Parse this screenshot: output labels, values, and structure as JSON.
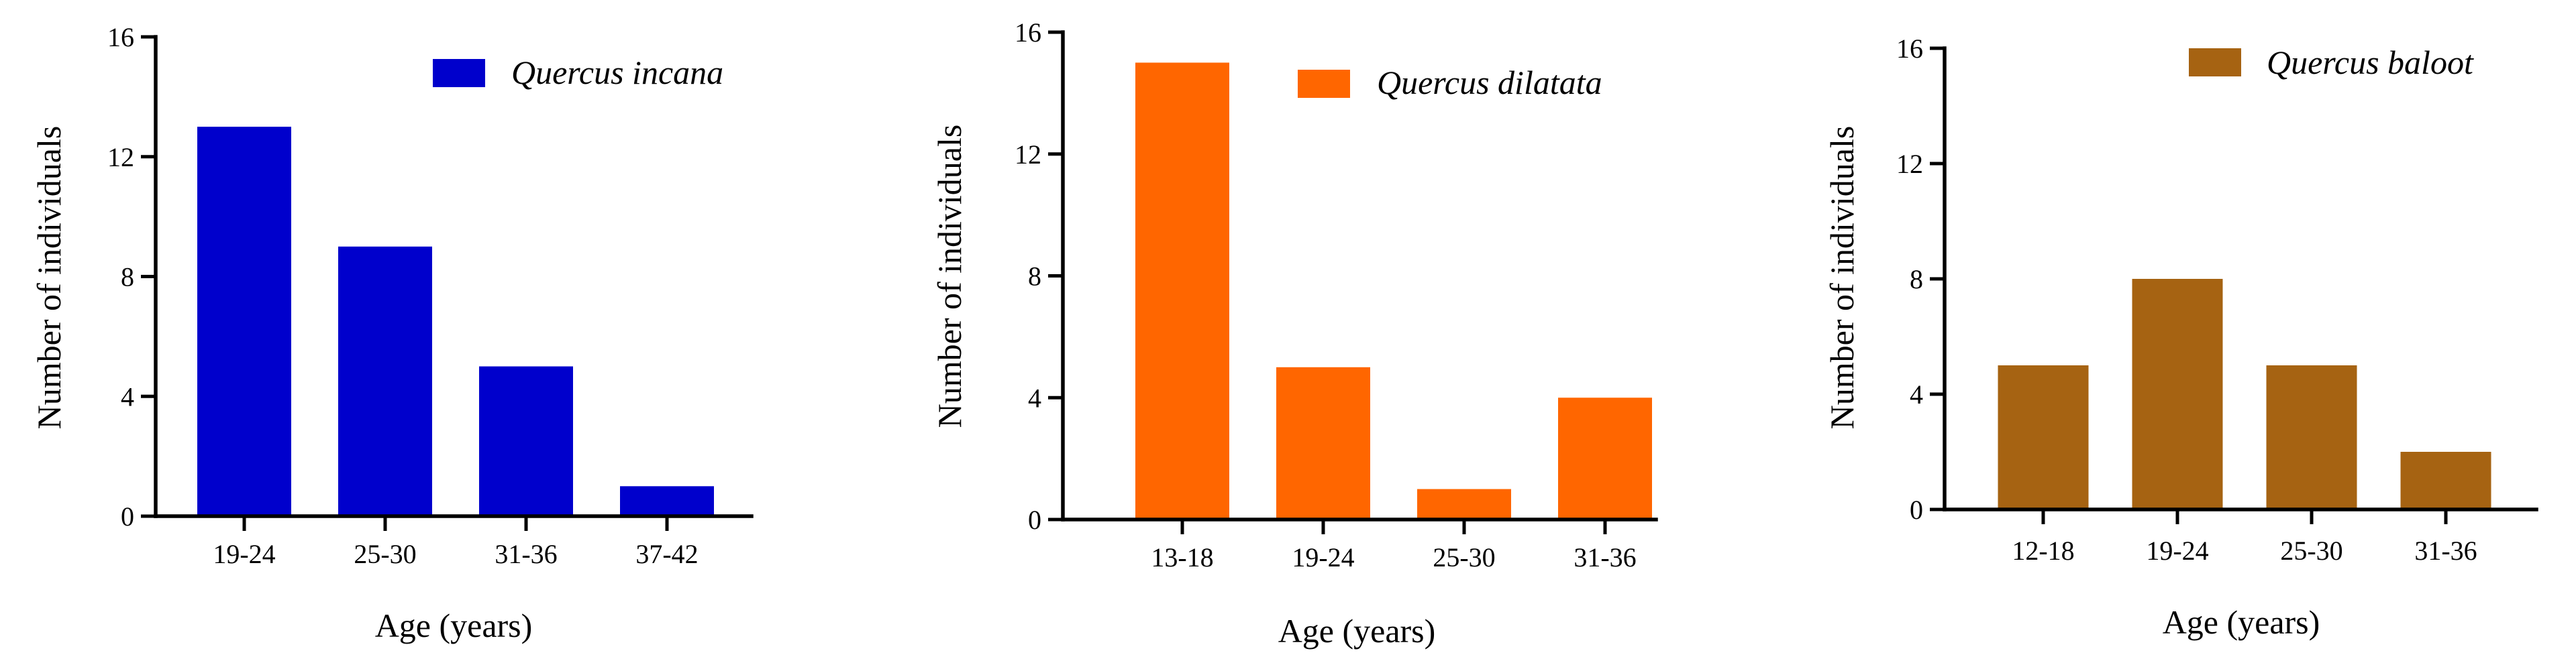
{
  "chart_data": [
    {
      "type": "bar",
      "title": "",
      "xlabel": "Age (years)",
      "ylabel": "Number of individuals",
      "categories": [
        "19-24",
        "25-30",
        "31-36",
        "37-42"
      ],
      "series": [
        {
          "name": "Quercus incana",
          "values": [
            13,
            9,
            5,
            1
          ]
        }
      ],
      "ylim": [
        0,
        16
      ],
      "yticks": [
        0,
        4,
        8,
        12,
        16
      ],
      "color": "#0000CC",
      "legend": "top-right",
      "grid": false
    },
    {
      "type": "bar",
      "title": "",
      "xlabel": "Age (years)",
      "ylabel": "Number of individuals",
      "categories": [
        "13-18",
        "19-24",
        "25-30",
        "31-36"
      ],
      "series": [
        {
          "name": "Quercus dilatata",
          "values": [
            15,
            5,
            1,
            4
          ]
        }
      ],
      "ylim": [
        0,
        16
      ],
      "yticks": [
        0,
        4,
        8,
        12,
        16
      ],
      "color": "#FF6600",
      "legend": "top-right",
      "grid": false
    },
    {
      "type": "bar",
      "title": "",
      "xlabel": "Age (years)",
      "ylabel": "Number of individuals",
      "categories": [
        "12-18",
        "19-24",
        "25-30",
        "31-36"
      ],
      "series": [
        {
          "name": "Quercus baloot",
          "values": [
            5,
            8,
            5,
            2
          ]
        }
      ],
      "ylim": [
        0,
        16
      ],
      "yticks": [
        0,
        4,
        8,
        12,
        16
      ],
      "color": "#A66312",
      "legend": "top-right",
      "grid": false
    }
  ]
}
